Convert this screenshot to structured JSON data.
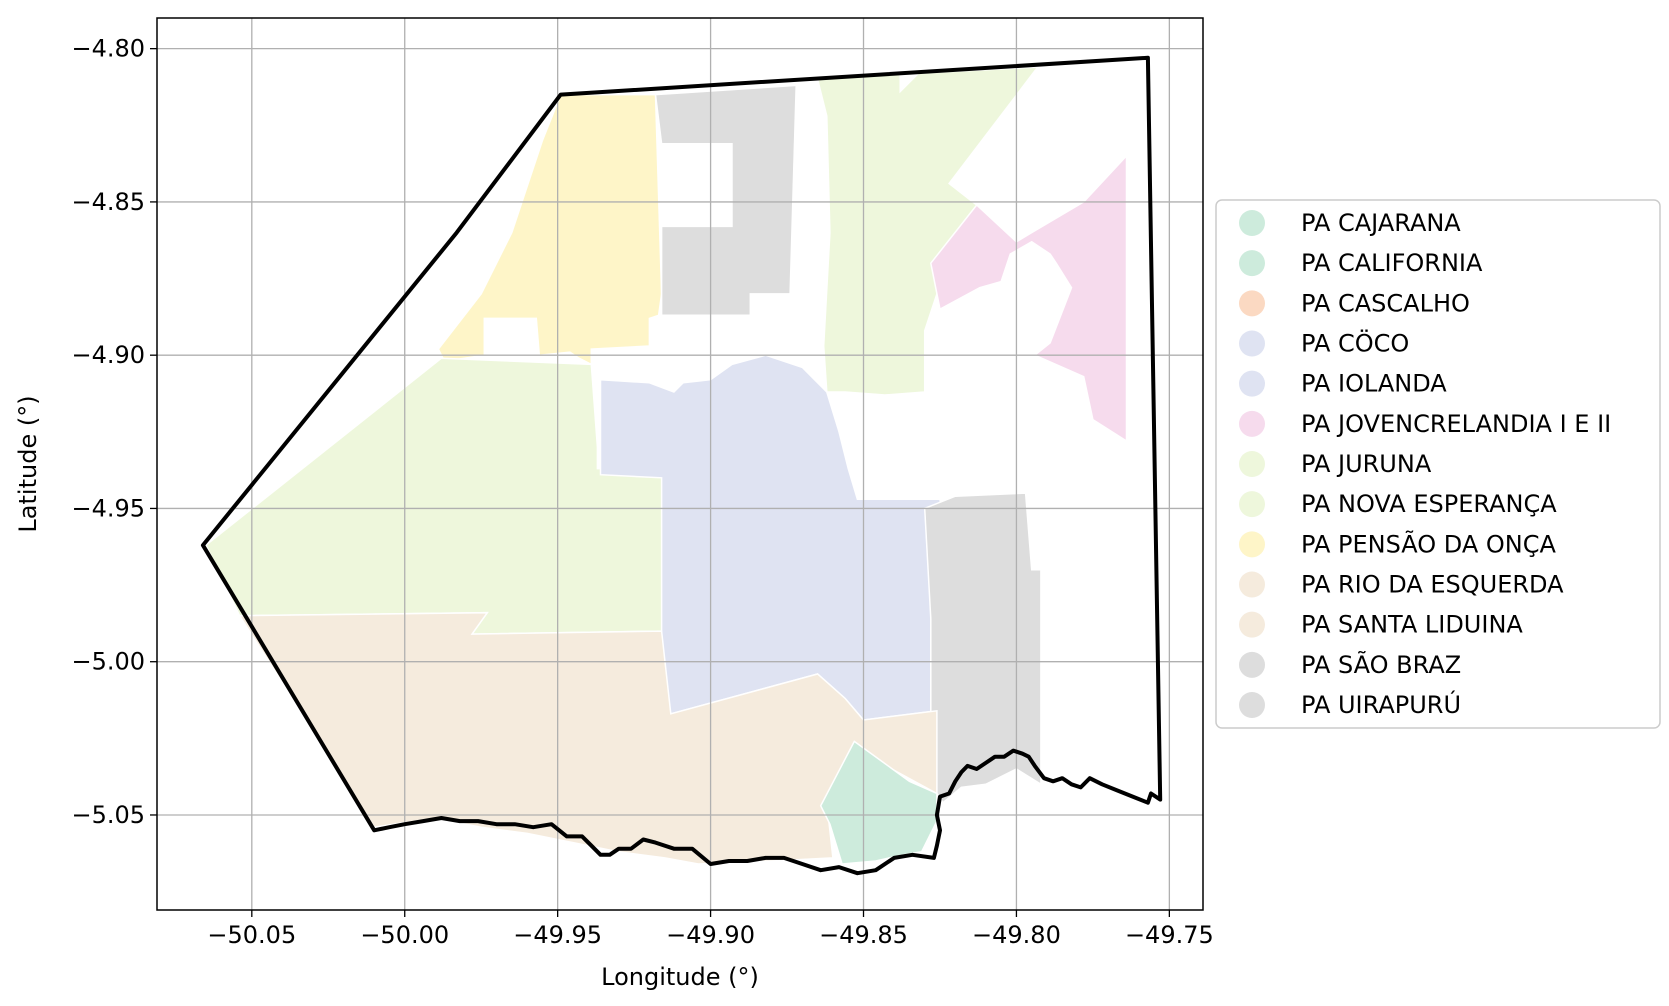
{
  "chart_data": {
    "type": "map",
    "xlabel": "Longitude (°)",
    "ylabel": "Latitude (°)",
    "xlim": [
      -50.081,
      -49.739
    ],
    "ylim": [
      -5.081,
      -4.79
    ],
    "grid": true,
    "legend_position": "right",
    "x_ticks": [
      {
        "value": -50.05,
        "label": "−50.05"
      },
      {
        "value": -50.0,
        "label": "−50.00"
      },
      {
        "value": -49.95,
        "label": "−49.95"
      },
      {
        "value": -49.9,
        "label": "−49.90"
      },
      {
        "value": -49.85,
        "label": "−49.85"
      },
      {
        "value": -49.8,
        "label": "−49.80"
      },
      {
        "value": -49.75,
        "label": "−49.75"
      }
    ],
    "y_ticks": [
      {
        "value": -4.8,
        "label": "−4.80"
      },
      {
        "value": -4.85,
        "label": "−4.85"
      },
      {
        "value": -4.9,
        "label": "−4.90"
      },
      {
        "value": -4.95,
        "label": "−4.95"
      },
      {
        "value": -5.0,
        "label": "−5.00"
      },
      {
        "value": -5.05,
        "label": "−5.05"
      }
    ],
    "legend": [
      {
        "label": "PA CAJARANA",
        "color": "#cdebdc"
      },
      {
        "label": "PA CALIFORNIA",
        "color": "#cdebdc"
      },
      {
        "label": "PA CASCALHO",
        "color": "#fbd9c2"
      },
      {
        "label": "PA CÖCO",
        "color": "#dfe3f2"
      },
      {
        "label": "PA IOLANDA",
        "color": "#dfe3f2"
      },
      {
        "label": "PA JOVENCRELANDIA I E II",
        "color": "#f6dbed"
      },
      {
        "label": "PA JURUNA",
        "color": "#eef7dc"
      },
      {
        "label": "PA NOVA ESPERANÇA",
        "color": "#eef7dc"
      },
      {
        "label": "PA PENSÃO DA ONÇA",
        "color": "#fef5c8"
      },
      {
        "label": "PA RIO DA ESQUERDA",
        "color": "#f5ebdd"
      },
      {
        "label": "PA SANTA LIDUINA",
        "color": "#f5ebdd"
      },
      {
        "label": "PA SÃO BRAZ",
        "color": "#dddddd"
      },
      {
        "label": "PA UIRAPURÚ",
        "color": "#dddddd"
      }
    ],
    "regions": [
      {
        "color": "#fef5c8",
        "coords": [
          [
            -49.949,
            -4.815
          ],
          [
            -49.918,
            -4.815
          ],
          [
            -49.916,
            -4.88
          ],
          [
            -49.917,
            -4.887
          ],
          [
            -49.92,
            -4.888
          ],
          [
            -49.92,
            -4.897
          ],
          [
            -49.939,
            -4.898
          ],
          [
            -49.939,
            -4.903
          ],
          [
            -49.943,
            -4.901
          ],
          [
            -49.946,
            -4.899
          ],
          [
            -49.956,
            -4.9
          ],
          [
            -49.957,
            -4.888
          ],
          [
            -49.974,
            -4.888
          ],
          [
            -49.974,
            -4.9
          ],
          [
            -49.987,
            -4.902
          ],
          [
            -49.989,
            -4.898
          ],
          [
            -49.975,
            -4.88
          ],
          [
            -49.965,
            -4.86
          ],
          [
            -49.955,
            -4.83
          ]
        ]
      },
      {
        "color": "#dddddd",
        "coords": [
          [
            -49.918,
            -4.815
          ],
          [
            -49.872,
            -4.812
          ],
          [
            -49.874,
            -4.88
          ],
          [
            -49.887,
            -4.88
          ],
          [
            -49.887,
            -4.887
          ],
          [
            -49.916,
            -4.887
          ],
          [
            -49.916,
            -4.858
          ],
          [
            -49.893,
            -4.858
          ],
          [
            -49.893,
            -4.831
          ],
          [
            -49.916,
            -4.831
          ]
        ]
      },
      {
        "color": "#eef7dc",
        "coords": [
          [
            -49.865,
            -4.81
          ],
          [
            -49.838,
            -4.808
          ],
          [
            -49.838,
            -4.814
          ],
          [
            -49.832,
            -4.808
          ],
          [
            -49.793,
            -4.806
          ],
          [
            -49.822,
            -4.844
          ],
          [
            -49.813,
            -4.851
          ],
          [
            -49.82,
            -4.873
          ],
          [
            -49.826,
            -4.88
          ],
          [
            -49.83,
            -4.892
          ],
          [
            -49.83,
            -4.912
          ],
          [
            -49.843,
            -4.913
          ],
          [
            -49.856,
            -4.912
          ],
          [
            -49.862,
            -4.912
          ],
          [
            -49.863,
            -4.897
          ],
          [
            -49.861,
            -4.86
          ],
          [
            -49.862,
            -4.822
          ]
        ]
      },
      {
        "color": "#f6dbed",
        "coords": [
          [
            -49.813,
            -4.851
          ],
          [
            -49.828,
            -4.87
          ],
          [
            -49.825,
            -4.885
          ],
          [
            -49.812,
            -4.878
          ],
          [
            -49.805,
            -4.876
          ],
          [
            -49.802,
            -4.867
          ],
          [
            -49.795,
            -4.863
          ],
          [
            -49.789,
            -4.867
          ],
          [
            -49.787,
            -4.87
          ],
          [
            -49.782,
            -4.878
          ],
          [
            -49.789,
            -4.896
          ],
          [
            -49.794,
            -4.9
          ],
          [
            -49.778,
            -4.907
          ],
          [
            -49.775,
            -4.921
          ],
          [
            -49.764,
            -4.928
          ],
          [
            -49.764,
            -4.835
          ],
          [
            -49.778,
            -4.85
          ],
          [
            -49.795,
            -4.86
          ],
          [
            -49.8,
            -4.863
          ]
        ]
      },
      {
        "color": "#eef7dc",
        "coords": [
          [
            -49.988,
            -4.901
          ],
          [
            -49.939,
            -4.903
          ],
          [
            -49.937,
            -4.93
          ],
          [
            -49.937,
            -4.937
          ],
          [
            -49.916,
            -4.937
          ],
          [
            -49.915,
            -4.99
          ],
          [
            -49.978,
            -4.991
          ],
          [
            -49.973,
            -4.984
          ],
          [
            -50.054,
            -4.985
          ],
          [
            -50.065,
            -4.962
          ]
        ]
      },
      {
        "color": "#dfe3f2",
        "coords": [
          [
            -49.936,
            -4.908
          ],
          [
            -49.92,
            -4.909
          ],
          [
            -49.912,
            -4.912
          ],
          [
            -49.909,
            -4.909
          ],
          [
            -49.9,
            -4.908
          ],
          [
            -49.893,
            -4.903
          ],
          [
            -49.882,
            -4.9
          ],
          [
            -49.87,
            -4.904
          ],
          [
            -49.862,
            -4.912
          ],
          [
            -49.858,
            -4.925
          ],
          [
            -49.855,
            -4.937
          ],
          [
            -49.852,
            -4.947
          ],
          [
            -49.825,
            -4.947
          ],
          [
            -49.822,
            -4.977
          ],
          [
            -49.826,
            -4.989
          ],
          [
            -49.826,
            -5.016
          ],
          [
            -49.85,
            -5.019
          ],
          [
            -49.856,
            -5.012
          ],
          [
            -49.865,
            -5.004
          ],
          [
            -49.913,
            -5.017
          ],
          [
            -49.916,
            -5.01
          ],
          [
            -49.916,
            -4.94
          ],
          [
            -49.936,
            -4.939
          ]
        ]
      },
      {
        "color": "#dddddd",
        "coords": [
          [
            -49.82,
            -4.946
          ],
          [
            -49.797,
            -4.945
          ],
          [
            -49.795,
            -4.97
          ],
          [
            -49.792,
            -4.97
          ],
          [
            -49.792,
            -5.04
          ],
          [
            -49.8,
            -5.035
          ],
          [
            -49.81,
            -5.04
          ],
          [
            -49.818,
            -5.041
          ],
          [
            -49.824,
            -5.046
          ],
          [
            -49.828,
            -5.04
          ],
          [
            -49.828,
            -4.986
          ],
          [
            -49.83,
            -4.95
          ]
        ]
      },
      {
        "color": "#f5ebdd",
        "coords": [
          [
            -50.054,
            -4.985
          ],
          [
            -49.973,
            -4.984
          ],
          [
            -49.978,
            -4.991
          ],
          [
            -49.916,
            -4.99
          ],
          [
            -49.913,
            -5.017
          ],
          [
            -49.865,
            -5.004
          ],
          [
            -49.856,
            -5.012
          ],
          [
            -49.85,
            -5.019
          ],
          [
            -49.826,
            -5.016
          ],
          [
            -49.826,
            -5.043
          ],
          [
            -49.85,
            -5.03
          ],
          [
            -49.862,
            -5.046
          ],
          [
            -49.86,
            -5.064
          ],
          [
            -49.88,
            -5.065
          ],
          [
            -49.904,
            -5.066
          ],
          [
            -49.915,
            -5.064
          ],
          [
            -49.93,
            -5.062
          ],
          [
            -49.945,
            -5.059
          ],
          [
            -49.96,
            -5.056
          ],
          [
            -49.975,
            -5.054
          ],
          [
            -49.99,
            -5.051
          ],
          [
            -50.01,
            -5.054
          ]
        ]
      },
      {
        "color": "#cdebdc",
        "coords": [
          [
            -49.853,
            -5.026
          ],
          [
            -49.835,
            -5.039
          ],
          [
            -49.826,
            -5.043
          ],
          [
            -49.826,
            -5.052
          ],
          [
            -49.831,
            -5.062
          ],
          [
            -49.837,
            -5.063
          ],
          [
            -49.846,
            -5.065
          ],
          [
            -49.857,
            -5.066
          ],
          [
            -49.861,
            -5.053
          ],
          [
            -49.864,
            -5.047
          ]
        ]
      }
    ],
    "boundary": [
      [
        -49.949,
        -4.815
      ],
      [
        -49.757,
        -4.803
      ],
      [
        -49.753,
        -5.045
      ],
      [
        -49.756,
        -5.043
      ],
      [
        -49.757,
        -5.046
      ],
      [
        -49.762,
        -5.044
      ],
      [
        -49.767,
        -5.042
      ],
      [
        -49.772,
        -5.04
      ],
      [
        -49.776,
        -5.038
      ],
      [
        -49.779,
        -5.041
      ],
      [
        -49.782,
        -5.04
      ],
      [
        -49.785,
        -5.038
      ],
      [
        -49.788,
        -5.039
      ],
      [
        -49.791,
        -5.038
      ],
      [
        -49.794,
        -5.034
      ],
      [
        -49.796,
        -5.031
      ],
      [
        -49.798,
        -5.03
      ],
      [
        -49.801,
        -5.029
      ],
      [
        -49.804,
        -5.031
      ],
      [
        -49.807,
        -5.031
      ],
      [
        -49.81,
        -5.033
      ],
      [
        -49.813,
        -5.035
      ],
      [
        -49.816,
        -5.034
      ],
      [
        -49.818,
        -5.036
      ],
      [
        -49.82,
        -5.039
      ],
      [
        -49.822,
        -5.043
      ],
      [
        -49.825,
        -5.044
      ],
      [
        -49.826,
        -5.05
      ],
      [
        -49.825,
        -5.055
      ],
      [
        -49.826,
        -5.06
      ],
      [
        -49.827,
        -5.064
      ],
      [
        -49.834,
        -5.063
      ],
      [
        -49.84,
        -5.064
      ],
      [
        -49.846,
        -5.068
      ],
      [
        -49.852,
        -5.069
      ],
      [
        -49.858,
        -5.067
      ],
      [
        -49.864,
        -5.068
      ],
      [
        -49.87,
        -5.066
      ],
      [
        -49.876,
        -5.064
      ],
      [
        -49.882,
        -5.064
      ],
      [
        -49.888,
        -5.065
      ],
      [
        -49.894,
        -5.065
      ],
      [
        -49.9,
        -5.066
      ],
      [
        -49.906,
        -5.061
      ],
      [
        -49.912,
        -5.061
      ],
      [
        -49.918,
        -5.059
      ],
      [
        -49.922,
        -5.058
      ],
      [
        -49.926,
        -5.061
      ],
      [
        -49.93,
        -5.061
      ],
      [
        -49.933,
        -5.063
      ],
      [
        -49.936,
        -5.063
      ],
      [
        -49.939,
        -5.06
      ],
      [
        -49.942,
        -5.057
      ],
      [
        -49.947,
        -5.057
      ],
      [
        -49.952,
        -5.053
      ],
      [
        -49.958,
        -5.054
      ],
      [
        -49.964,
        -5.053
      ],
      [
        -49.97,
        -5.053
      ],
      [
        -49.976,
        -5.052
      ],
      [
        -49.982,
        -5.052
      ],
      [
        -49.988,
        -5.051
      ],
      [
        -49.994,
        -5.052
      ],
      [
        -50.0,
        -5.053
      ],
      [
        -50.005,
        -5.054
      ],
      [
        -50.01,
        -5.055
      ],
      [
        -50.066,
        -4.962
      ],
      [
        -49.983,
        -4.86
      ]
    ]
  }
}
